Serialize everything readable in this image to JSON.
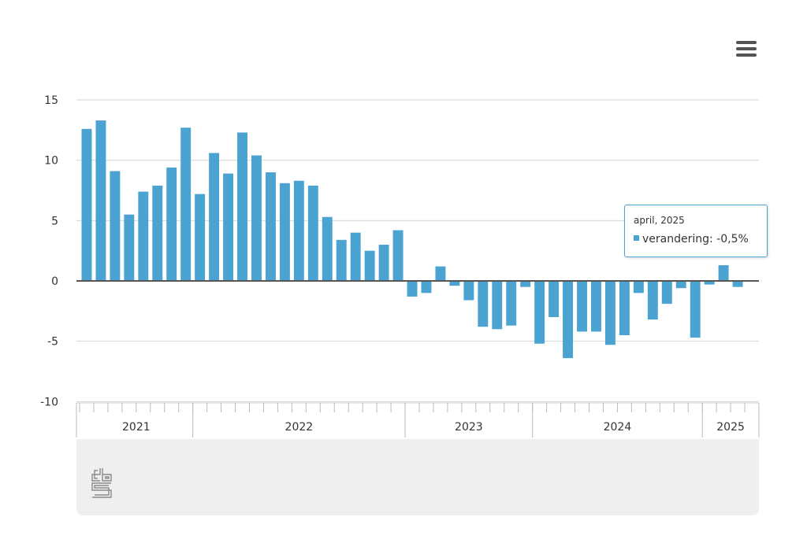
{
  "chart_data": {
    "type": "bar",
    "title": "",
    "xlabel": "",
    "ylabel": "",
    "ylim": [
      -10,
      15
    ],
    "yticks": [
      15,
      10,
      5,
      0,
      -5,
      -10
    ],
    "grid": true,
    "year_labels": [
      "2021",
      "2022",
      "2023",
      "2024",
      "2025"
    ],
    "series": [
      {
        "name": "verandering",
        "color": "#4aa3d0",
        "values": [
          12.6,
          13.3,
          9.1,
          5.5,
          7.4,
          7.9,
          9.4,
          12.7,
          7.2,
          10.6,
          8.9,
          12.3,
          10.4,
          9.0,
          8.1,
          8.3,
          7.9,
          5.3,
          3.4,
          4.0,
          2.5,
          3.0,
          4.2,
          -1.3,
          -1.0,
          1.2,
          -0.4,
          -1.6,
          -3.8,
          -4.0,
          -3.7,
          -0.5,
          -5.2,
          -3.0,
          -6.4,
          -4.2,
          -4.2,
          -5.3,
          -4.5,
          -1.0,
          -3.2,
          -1.9,
          -0.6,
          -4.7,
          -0.3,
          1.3,
          -0.5
        ]
      }
    ],
    "zero_line_color": "#555555",
    "bar_color": "#4aa3d0"
  },
  "tooltip": {
    "title": "april, 2025",
    "series_label": "verandering: -0,5%"
  },
  "icons": {
    "menu": "hamburger-menu-icon",
    "logo": "cbs-logo"
  }
}
